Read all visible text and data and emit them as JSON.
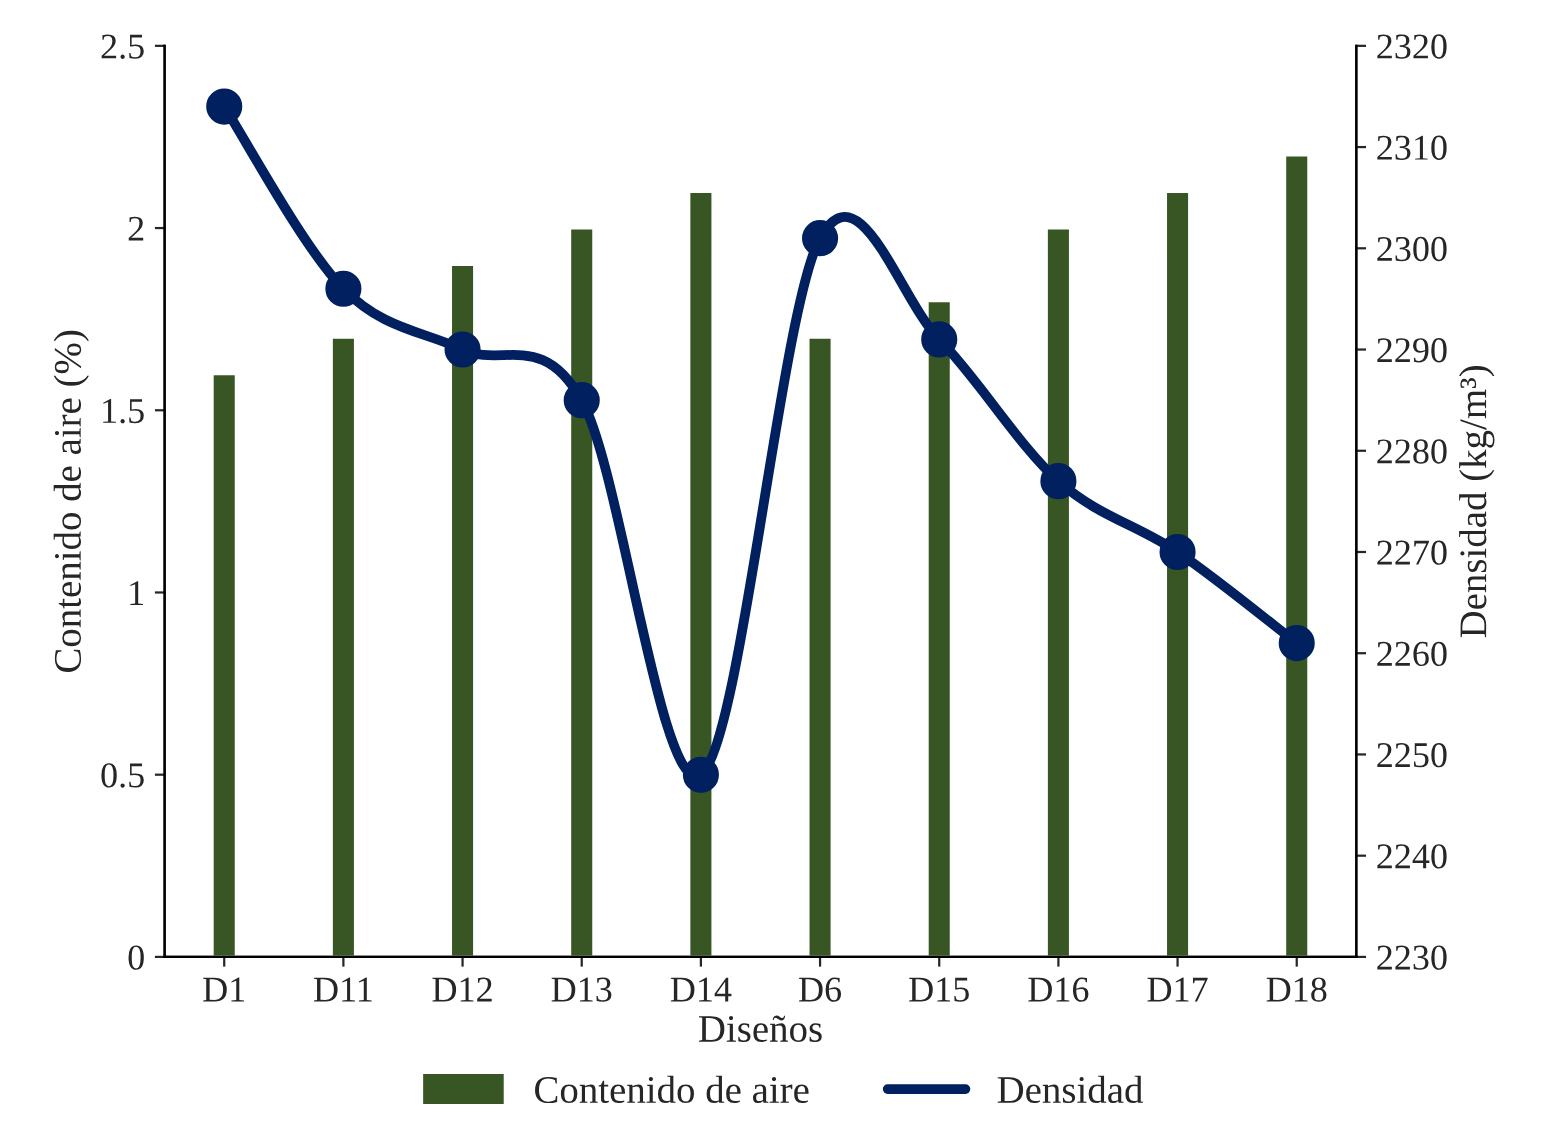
{
  "chart_data": {
    "type": "bar",
    "xlabel": "Diseños",
    "ylabel": "Contenido de aire (%)",
    "y2label": "Densidad (kg/m³)",
    "categories": [
      "D1",
      "D11",
      "D12",
      "D13",
      "D14",
      "D6",
      "D15",
      "D16",
      "D17",
      "D18"
    ],
    "series": [
      {
        "name": "Contenido de aire",
        "color": "#375623",
        "values": [
          1.6,
          1.7,
          1.9,
          2.0,
          2.1,
          1.7,
          1.8,
          2.0,
          2.1,
          2.2
        ]
      },
      {
        "name": "Densidad",
        "type": "line",
        "axis": "y2",
        "color": "#002060",
        "marker": "circle",
        "values": [
          2314,
          2296,
          2290,
          2285,
          2248,
          2301,
          2291,
          2277,
          2270,
          2261
        ]
      }
    ],
    "ylim": [
      0,
      2.5
    ],
    "yticks": [
      0,
      0.5,
      1,
      1.5,
      2,
      2.5
    ],
    "y2lim": [
      2230,
      2320
    ],
    "y2ticks": [
      2230,
      2240,
      2250,
      2260,
      2270,
      2280,
      2290,
      2300,
      2310,
      2320
    ],
    "grid": false,
    "legend": "bottom"
  }
}
